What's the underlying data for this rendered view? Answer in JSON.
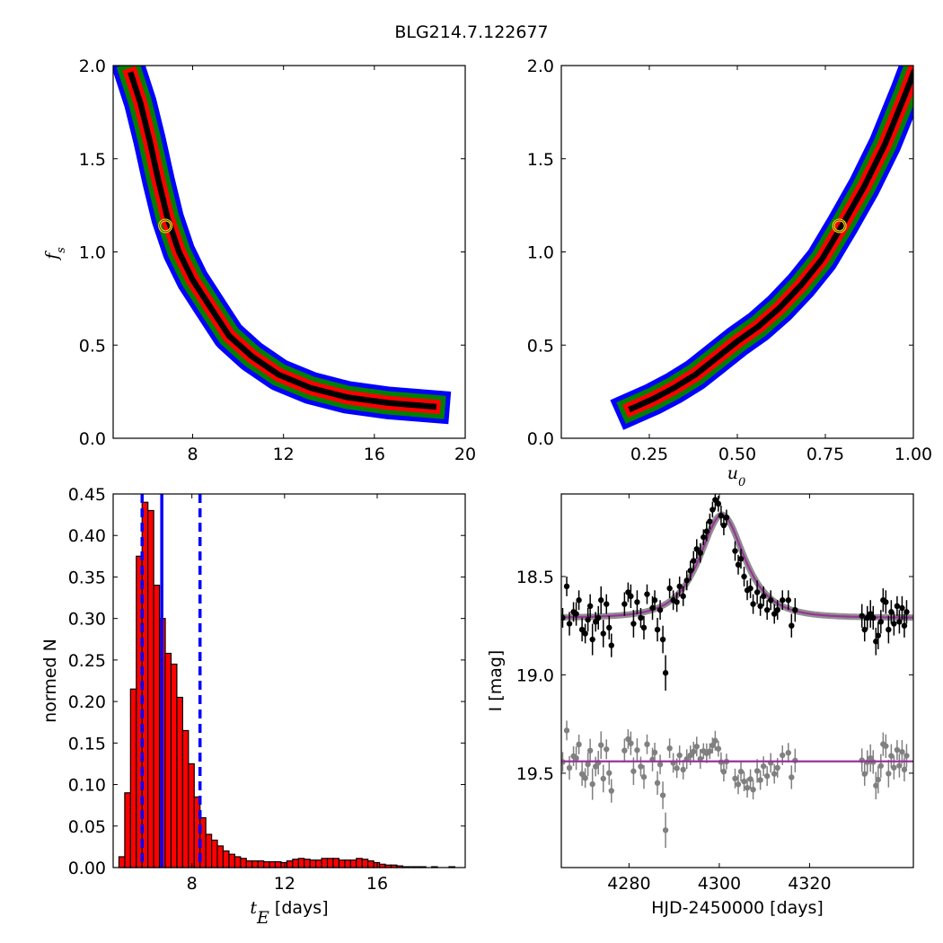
{
  "figure": {
    "title": "BLG214.7.122677"
  },
  "chart_data": [
    {
      "id": "fs_vs_tE",
      "type": "heatmap",
      "title": "",
      "xlabel": "",
      "ylabel": "f_s",
      "xlim": [
        4.5,
        20
      ],
      "ylim": [
        0,
        2
      ],
      "xticks": [
        8,
        12,
        16,
        20
      ],
      "yticks": [
        0.0,
        0.5,
        1.0,
        1.5,
        2.0
      ],
      "levels": [
        {
          "name": "1-sigma",
          "color": "#000000"
        },
        {
          "name": "2-sigma",
          "color": "#ff0000"
        },
        {
          "name": "3-sigma",
          "color": "#008000"
        },
        {
          "name": "4-sigma",
          "color": "#0000ff"
        }
      ],
      "ridge": [
        [
          5.3,
          1.95
        ],
        [
          5.7,
          1.8
        ],
        [
          6.1,
          1.6
        ],
        [
          6.5,
          1.38
        ],
        [
          6.9,
          1.18
        ],
        [
          7.4,
          1.0
        ],
        [
          8.0,
          0.85
        ],
        [
          8.8,
          0.7
        ],
        [
          9.6,
          0.55
        ],
        [
          10.6,
          0.44
        ],
        [
          11.8,
          0.34
        ],
        [
          13.2,
          0.27
        ],
        [
          14.8,
          0.22
        ],
        [
          16.6,
          0.19
        ],
        [
          18.6,
          0.17
        ]
      ],
      "best_fit": {
        "x": 6.8,
        "y": 1.14,
        "color": "#ffd700"
      }
    },
    {
      "id": "fs_vs_u0",
      "type": "heatmap",
      "title": "",
      "xlabel": "u_0",
      "ylabel": "",
      "xlim": [
        0,
        1
      ],
      "ylim": [
        0,
        2
      ],
      "xticks": [
        0.25,
        0.5,
        0.75,
        1.0
      ],
      "xtick_labels": [
        "0.25",
        "0.50",
        "0.75",
        "1.00"
      ],
      "yticks": [
        0.0,
        0.5,
        1.0,
        1.5,
        2.0
      ],
      "ridge": [
        [
          0.2,
          0.16
        ],
        [
          0.26,
          0.21
        ],
        [
          0.32,
          0.27
        ],
        [
          0.38,
          0.34
        ],
        [
          0.44,
          0.43
        ],
        [
          0.5,
          0.52
        ],
        [
          0.56,
          0.6
        ],
        [
          0.62,
          0.7
        ],
        [
          0.68,
          0.82
        ],
        [
          0.74,
          0.96
        ],
        [
          0.8,
          1.15
        ],
        [
          0.86,
          1.35
        ],
        [
          0.92,
          1.58
        ],
        [
          0.98,
          1.86
        ],
        [
          1.0,
          1.96
        ]
      ],
      "best_fit": {
        "x": 0.79,
        "y": 1.14,
        "color": "#ffd700"
      }
    },
    {
      "id": "tE_histogram",
      "type": "bar",
      "title": "",
      "xlabel": "t_E",
      "xlabel_suffix": " [days]",
      "ylabel": "normed N",
      "xlim": [
        4.6,
        19.8
      ],
      "ylim": [
        0,
        0.45
      ],
      "xticks": [
        8,
        12,
        16
      ],
      "yticks": [
        0.0,
        0.05,
        0.1,
        0.15,
        0.2,
        0.25,
        0.3,
        0.35,
        0.4,
        0.45
      ],
      "ytick_labels": [
        "0.00",
        "0.05",
        "0.10",
        "0.15",
        "0.20",
        "0.25",
        "0.30",
        "0.35",
        "0.40",
        "0.45"
      ],
      "bin_start": 4.85,
      "bin_width": 0.25,
      "values": [
        0.013,
        0.09,
        0.215,
        0.375,
        0.44,
        0.43,
        0.34,
        0.3,
        0.258,
        0.245,
        0.205,
        0.165,
        0.125,
        0.085,
        0.06,
        0.04,
        0.033,
        0.026,
        0.02,
        0.016,
        0.013,
        0.011,
        0.008,
        0.008,
        0.008,
        0.007,
        0.007,
        0.007,
        0.006,
        0.008,
        0.01,
        0.011,
        0.01,
        0.009,
        0.009,
        0.011,
        0.011,
        0.011,
        0.009,
        0.009,
        0.009,
        0.011,
        0.01,
        0.008,
        0.006,
        0.004,
        0.003,
        0.003,
        0.002,
        0.001,
        0.001,
        0.001,
        0.001,
        0.0,
        0.001,
        0.0,
        0.0,
        0.001
      ],
      "vlines": [
        {
          "x": 6.7,
          "style": "solid",
          "color": "#0000ff"
        },
        {
          "x": 5.85,
          "style": "dashed",
          "color": "#0000ff"
        },
        {
          "x": 8.35,
          "style": "dashed",
          "color": "#0000ff"
        }
      ]
    },
    {
      "id": "light_curve",
      "type": "scatter",
      "title": "",
      "xlabel": "HJD-2450000 [days]",
      "ylabel": "I [mag]",
      "xlim": [
        4265,
        4343
      ],
      "ylim": [
        19.98,
        18.08
      ],
      "xticks": [
        4280,
        4300,
        4320
      ],
      "yticks": [
        18.5,
        19.0,
        19.5
      ],
      "model": {
        "t0": 4300.6,
        "tE": 6.7,
        "u0": 0.79,
        "fs": 1.14,
        "baseline": 18.71,
        "color": "#993399"
      },
      "residual_offset": 19.44,
      "series": [
        {
          "name": "",
          "color": "#000000",
          "points": [
            [
              4265.3,
              18.71,
              0.05
            ],
            [
              4266.2,
              18.55,
              0.05
            ],
            [
              4266.8,
              18.74,
              0.06
            ],
            [
              4267.7,
              18.68,
              0.05
            ],
            [
              4268.3,
              18.69,
              0.06
            ],
            [
              4268.9,
              18.62,
              0.05
            ],
            [
              4269.6,
              18.77,
              0.06
            ],
            [
              4270.3,
              18.79,
              0.05
            ],
            [
              4270.9,
              18.72,
              0.06
            ],
            [
              4271.4,
              18.65,
              0.06
            ],
            [
              4271.9,
              18.82,
              0.08
            ],
            [
              4272.6,
              18.73,
              0.05
            ],
            [
              4273.2,
              18.71,
              0.06
            ],
            [
              4273.8,
              18.62,
              0.07
            ],
            [
              4274.3,
              18.79,
              0.07
            ],
            [
              4275.0,
              18.64,
              0.05
            ],
            [
              4275.6,
              18.76,
              0.06
            ],
            [
              4276.1,
              18.85,
              0.06
            ],
            [
              4279.0,
              18.64,
              0.06
            ],
            [
              4279.8,
              18.58,
              0.05
            ],
            [
              4280.4,
              18.6,
              0.06
            ],
            [
              4281.0,
              18.74,
              0.07
            ],
            [
              4281.8,
              18.63,
              0.06
            ],
            [
              4282.6,
              18.71,
              0.05
            ],
            [
              4283.3,
              18.76,
              0.06
            ],
            [
              4284.0,
              18.59,
              0.05
            ],
            [
              4285.2,
              18.66,
              0.06
            ],
            [
              4285.7,
              18.62,
              0.05
            ],
            [
              4286.3,
              18.77,
              0.06
            ],
            [
              4286.9,
              18.67,
              0.05
            ],
            [
              4287.5,
              18.82,
              0.07
            ],
            [
              4288.1,
              18.99,
              0.09
            ],
            [
              4289.0,
              18.56,
              0.05
            ],
            [
              4289.8,
              18.62,
              0.05
            ],
            [
              4290.6,
              18.63,
              0.05
            ],
            [
              4291.2,
              18.55,
              0.05
            ],
            [
              4292.0,
              18.6,
              0.05
            ],
            [
              4292.8,
              18.52,
              0.05
            ],
            [
              4293.6,
              18.47,
              0.05
            ],
            [
              4294.3,
              18.42,
              0.05
            ],
            [
              4295.0,
              18.36,
              0.05
            ],
            [
              4295.8,
              18.38,
              0.05
            ],
            [
              4296.5,
              18.3,
              0.04
            ],
            [
              4297.2,
              18.27,
              0.05
            ],
            [
              4297.9,
              18.22,
              0.04
            ],
            [
              4298.5,
              18.16,
              0.04
            ],
            [
              4299.1,
              18.11,
              0.05
            ],
            [
              4299.8,
              18.13,
              0.04
            ],
            [
              4300.4,
              18.19,
              0.05
            ],
            [
              4301.0,
              18.24,
              0.05
            ],
            [
              4301.6,
              18.2,
              0.04
            ],
            [
              4303.5,
              18.37,
              0.05
            ],
            [
              4304.2,
              18.44,
              0.05
            ],
            [
              4304.8,
              18.41,
              0.05
            ],
            [
              4305.5,
              18.5,
              0.05
            ],
            [
              4306.2,
              18.57,
              0.05
            ],
            [
              4306.9,
              18.56,
              0.05
            ],
            [
              4307.5,
              18.64,
              0.05
            ],
            [
              4308.4,
              18.58,
              0.06
            ],
            [
              4309.1,
              18.65,
              0.05
            ],
            [
              4309.8,
              18.6,
              0.05
            ],
            [
              4310.6,
              18.67,
              0.05
            ],
            [
              4311.4,
              18.62,
              0.05
            ],
            [
              4312.2,
              18.69,
              0.05
            ],
            [
              4312.9,
              18.67,
              0.05
            ],
            [
              4314.0,
              18.62,
              0.05
            ],
            [
              4315.3,
              18.62,
              0.05
            ],
            [
              4316.0,
              18.75,
              0.06
            ],
            [
              4316.8,
              18.67,
              0.06
            ],
            [
              4331.6,
              18.7,
              0.06
            ],
            [
              4332.2,
              18.77,
              0.06
            ],
            [
              4332.8,
              18.71,
              0.06
            ],
            [
              4333.5,
              18.69,
              0.07
            ],
            [
              4334.1,
              18.71,
              0.06
            ],
            [
              4334.7,
              18.83,
              0.07
            ],
            [
              4335.2,
              18.8,
              0.07
            ],
            [
              4335.8,
              18.73,
              0.06
            ],
            [
              4336.3,
              18.62,
              0.06
            ],
            [
              4336.9,
              18.63,
              0.06
            ],
            [
              4337.5,
              18.77,
              0.07
            ],
            [
              4338.1,
              18.68,
              0.06
            ],
            [
              4338.7,
              18.74,
              0.06
            ],
            [
              4339.4,
              18.65,
              0.05
            ],
            [
              4339.9,
              18.73,
              0.06
            ],
            [
              4340.5,
              18.66,
              0.06
            ],
            [
              4341.0,
              18.75,
              0.06
            ],
            [
              4341.5,
              18.68,
              0.06
            ]
          ]
        }
      ]
    }
  ]
}
